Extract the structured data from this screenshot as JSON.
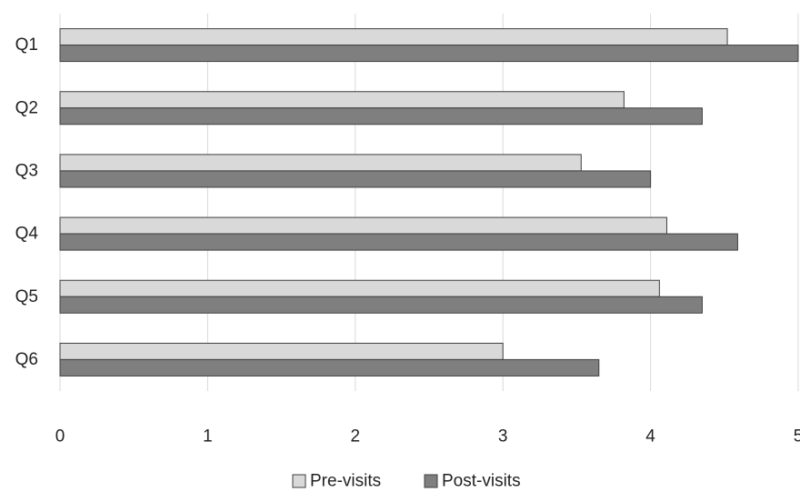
{
  "chart_data": {
    "type": "bar",
    "orientation": "horizontal",
    "categories": [
      "Q1",
      "Q2",
      "Q3",
      "Q4",
      "Q5",
      "Q6"
    ],
    "series": [
      {
        "name": "Pre-visits",
        "values": [
          4.52,
          3.82,
          3.53,
          4.11,
          4.06,
          3.0
        ],
        "color": "#d9d9d9"
      },
      {
        "name": "Post-visits",
        "values": [
          5.0,
          4.35,
          4.0,
          4.59,
          4.35,
          3.65
        ],
        "color": "#7f7f7f"
      }
    ],
    "xlim": [
      0,
      5
    ],
    "xticks": [
      "0",
      "1",
      "2",
      "3",
      "4",
      "5"
    ],
    "grid": true,
    "legend_position": "bottom",
    "title": "",
    "xlabel": "",
    "ylabel": ""
  }
}
